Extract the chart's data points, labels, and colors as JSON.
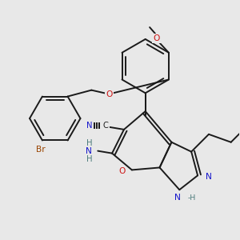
{
  "background_color": "#e8e8e8",
  "bond_color": "#1a1a1a",
  "bond_width": 1.4,
  "dbo": 0.018,
  "atom_colors": {
    "N": "#1414cc",
    "O": "#cc1414",
    "Br": "#994400",
    "C": "#1a1a1a",
    "H": "#4a7a7a"
  },
  "fs": 7.2
}
